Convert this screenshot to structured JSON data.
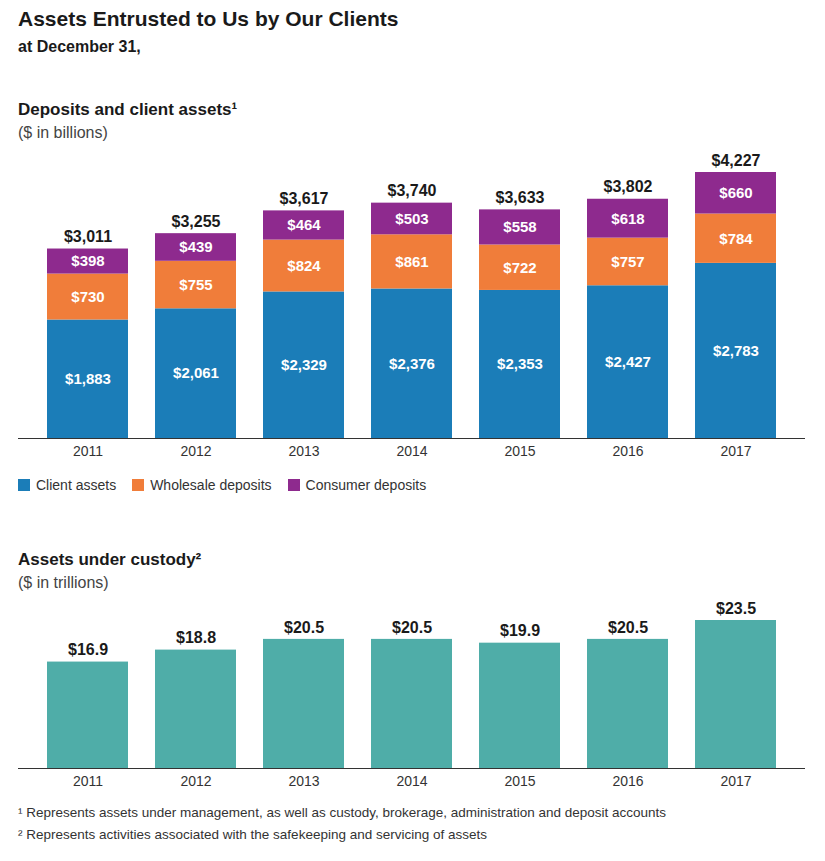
{
  "title": "Assets Entrusted to Us by Our Clients",
  "subtitle": "at December 31,",
  "footnotes": [
    "¹ Represents assets under management, as well as custody, brokerage, administration and deposit accounts",
    "² Represents activities associated with the safekeeping and servicing of assets"
  ],
  "chart_data": [
    {
      "type": "bar",
      "title": "Deposits and client assets¹",
      "subtitle": "($ in billions)",
      "categories": [
        "2011",
        "2012",
        "2013",
        "2014",
        "2015",
        "2016",
        "2017"
      ],
      "series": [
        {
          "name": "Client assets",
          "color": "#1b7db8",
          "values": [
            1883,
            2061,
            2329,
            2376,
            2353,
            2427,
            2783
          ],
          "value_labels": [
            "$1,883",
            "$2,061",
            "$2,329",
            "$2,376",
            "$2,353",
            "$2,427",
            "$2,783"
          ]
        },
        {
          "name": "Wholesale deposits",
          "color": "#f07d3a",
          "values": [
            730,
            755,
            824,
            861,
            722,
            757,
            784
          ],
          "value_labels": [
            "$730",
            "$755",
            "$824",
            "$861",
            "$722",
            "$757",
            "$784"
          ]
        },
        {
          "name": "Consumer deposits",
          "color": "#8e2a8e",
          "values": [
            398,
            439,
            464,
            503,
            558,
            618,
            660
          ],
          "value_labels": [
            "$398",
            "$439",
            "$464",
            "$503",
            "$558",
            "$618",
            "$660"
          ]
        }
      ],
      "totals": [
        3011,
        3255,
        3617,
        3740,
        3633,
        3802,
        4227
      ],
      "total_labels": [
        "$3,011",
        "$3,255",
        "$3,617",
        "$3,740",
        "$3,633",
        "$3,802",
        "$4,227"
      ],
      "ylim": [
        0,
        4227
      ],
      "yticks": [],
      "stacked": true,
      "data_labels": true,
      "tick_labels": "x",
      "legend": "bottom-left"
    },
    {
      "type": "bar",
      "title": "Assets under custody²",
      "subtitle": "($ in trillions)",
      "categories": [
        "2011",
        "2012",
        "2013",
        "2014",
        "2015",
        "2016",
        "2017"
      ],
      "values": [
        16.9,
        18.8,
        20.5,
        20.5,
        19.9,
        20.5,
        23.5
      ],
      "value_labels": [
        "$16.9",
        "$18.8",
        "$20.5",
        "$20.5",
        "$19.9",
        "$20.5",
        "$23.5"
      ],
      "color": "#4fada8",
      "ylim": [
        0,
        23.5
      ],
      "yticks": [],
      "data_labels": true,
      "tick_labels": "x"
    }
  ]
}
